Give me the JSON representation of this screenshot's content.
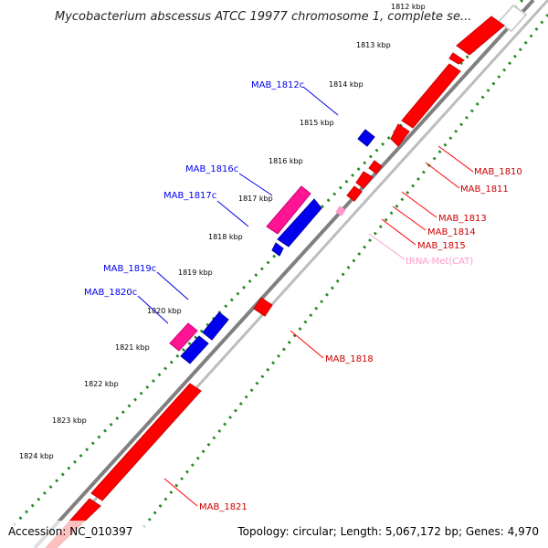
{
  "title": "Mycobacterium abscessus ATCC 19977 chromosome 1, complete se...",
  "footer": {
    "accession": "Accession: NC_010397",
    "stats": "Topology: circular; Length: 5,067,172 bp; Genes: 4,970"
  },
  "colors": {
    "forward_gene": "#ff0000",
    "reverse_gene": "#0000ee",
    "pseudo_gene": "#ff1493",
    "trna": "#ff99cc",
    "backbone": "#808080",
    "forward_ticks": "#228822",
    "reverse_ticks": "#228822"
  },
  "kbp_labels": [
    "1812 kbp",
    "1813 kbp",
    "1814 kbp",
    "1815 kbp",
    "1816 kbp",
    "1817 kbp",
    "1818 kbp",
    "1819 kbp",
    "1820 kbp",
    "1821 kbp",
    "1822 kbp",
    "1823 kbp",
    "1824 kbp"
  ],
  "reverse_gene_labels": [
    "MAB_1812c",
    "MAB_1816c",
    "MAB_1817c",
    "MAB_1819c",
    "MAB_1820c"
  ],
  "forward_gene_labels": [
    "MAB_1810",
    "MAB_1811",
    "MAB_1813",
    "MAB_1814",
    "MAB_1815",
    "tRNA-Met(CAT)",
    "MAB_1818",
    "MAB_1821"
  ]
}
